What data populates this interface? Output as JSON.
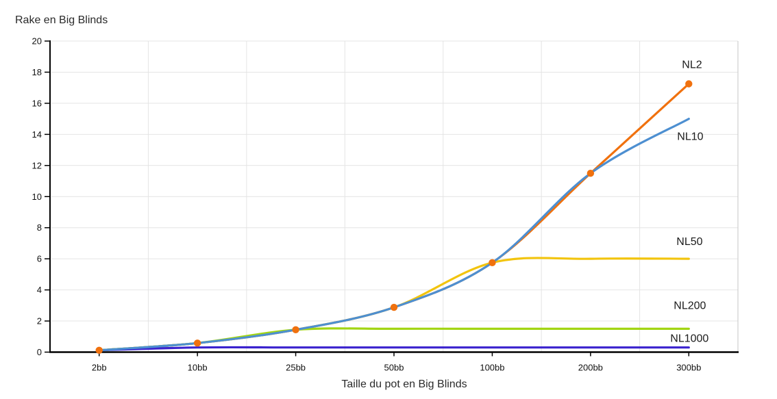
{
  "chart_data": {
    "type": "line",
    "title": "Rake en Big Blinds",
    "xlabel": "Taille du pot en Big Blinds",
    "ylabel": "",
    "categories": [
      "2bb",
      "10bb",
      "25bb",
      "50bb",
      "100bb",
      "200bb",
      "300bb"
    ],
    "y_ticks": [
      0,
      2,
      4,
      6,
      8,
      10,
      12,
      14,
      16,
      18,
      20
    ],
    "ylim": [
      0,
      20
    ],
    "grid": true,
    "legend_position": "inline-end-labels",
    "smooth_lines": true,
    "series": [
      {
        "name": "NL2",
        "color": "#f0710e",
        "values": [
          0.12,
          0.58,
          1.44,
          2.88,
          5.75,
          11.5,
          17.25
        ],
        "marker": true,
        "z": 1,
        "label_offset": {
          "dx": -10,
          "dy": -23
        }
      },
      {
        "name": "NL10",
        "color": "#4d8fd1",
        "values": [
          0.12,
          0.58,
          1.44,
          2.88,
          5.75,
          11.5,
          15
        ],
        "marker": false,
        "z": 5,
        "label_offset": {
          "dx": -17,
          "dy": 31
        }
      },
      {
        "name": "NL50",
        "color": "#f2c40d",
        "values": [
          0.12,
          0.58,
          1.44,
          2.88,
          5.75,
          6,
          6
        ],
        "marker": false,
        "z": 2,
        "label_offset": {
          "dx": -18,
          "dy": -20
        }
      },
      {
        "name": "NL200",
        "color": "#a2d513",
        "values": [
          0.12,
          0.58,
          1.44,
          1.5,
          1.5,
          1.5,
          1.5
        ],
        "marker": false,
        "z": 3,
        "label_offset": {
          "dx": -22,
          "dy": -29
        }
      },
      {
        "name": "NL1000",
        "color": "#3a22ce",
        "values": [
          0.12,
          0.3,
          0.3,
          0.3,
          0.3,
          0.3,
          0.3
        ],
        "marker": false,
        "z": 4,
        "label_offset": {
          "dx": -27,
          "dy": -8
        }
      }
    ],
    "colors": {
      "background": "#ffffff",
      "axis": "#000000",
      "gridline": "#e4e4e4",
      "plot_right_border": "#c6c6c6",
      "marker": "#f0710e"
    }
  }
}
